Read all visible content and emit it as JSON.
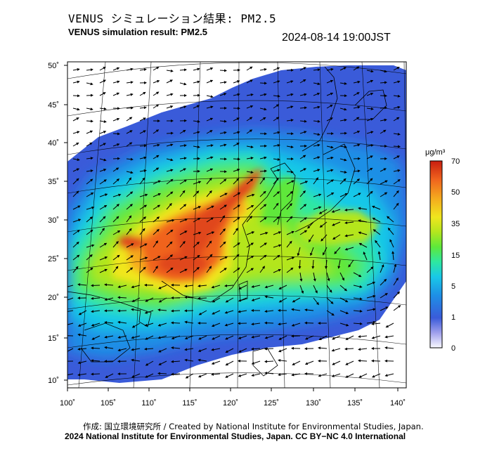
{
  "header": {
    "title_jp": "VENUS シミュレーション結果: PM2.5",
    "title_en": "VENUS simulation result: PM2.5",
    "timestamp": "2024-08-14 19:00JST"
  },
  "map": {
    "lon_ticks": [
      "100˚",
      "105˚",
      "110˚",
      "115˚",
      "120˚",
      "125˚",
      "130˚",
      "135˚",
      "140˚"
    ],
    "lat_ticks": [
      "50˚",
      "45˚",
      "40˚",
      "35˚",
      "30˚",
      "25˚",
      "20˚",
      "15˚",
      "10˚"
    ],
    "lon_range": [
      100,
      142
    ],
    "lat_range": [
      9,
      50
    ]
  },
  "colorbar": {
    "unit": "μg/m³",
    "ticks": [
      "70",
      "50",
      "35",
      "15",
      "5",
      "1",
      "0"
    ],
    "colors": [
      "#fafaff",
      "#8a8ae6",
      "#3a5bd9",
      "#1e8fe6",
      "#19c8e8",
      "#2ee8a0",
      "#5ee83a",
      "#b4e61e",
      "#f0e61e",
      "#f5aa1e",
      "#f0641e",
      "#d22814"
    ]
  },
  "footer": {
    "credit_line1": "作成: 国立環境研究所 / Created by National Institute for Environmental Studies, Japan.",
    "credit_line2": "2024 National Institute for Environmental Studies, Japan. CC BY−NC 4.0 International"
  }
}
